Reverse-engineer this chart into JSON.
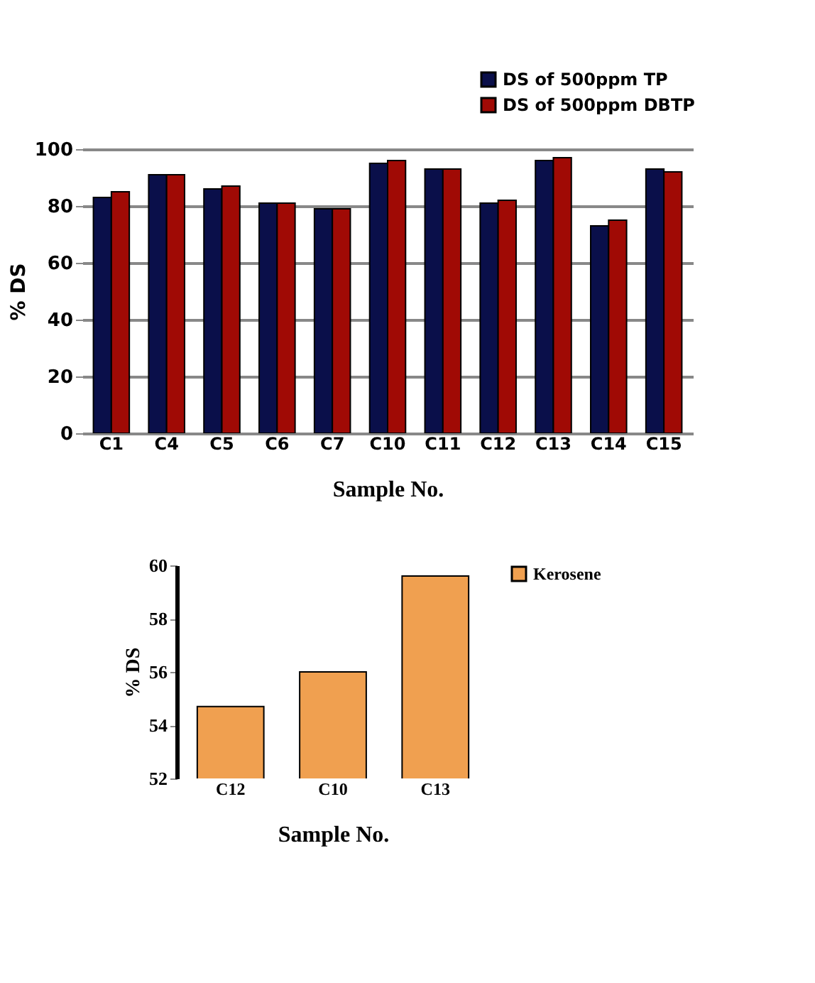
{
  "chart_data": [
    {
      "type": "bar",
      "xlabel": "Sample No.",
      "ylabel": "% DS",
      "categories": [
        "C1",
        "C4",
        "C5",
        "C6",
        "C7",
        "C10",
        "C11",
        "C12",
        "C13",
        "C14",
        "C15"
      ],
      "series": [
        {
          "name": "DS of 500ppm TP",
          "color": "#0a0f4a",
          "values": [
            83,
            91,
            86,
            81,
            79,
            95,
            93,
            81,
            96,
            73,
            93
          ]
        },
        {
          "name": "DS of 500ppm DBTP",
          "color": "#a00a05",
          "values": [
            85,
            91,
            87,
            81,
            79,
            96,
            93,
            82,
            97,
            75,
            92
          ]
        }
      ],
      "ylim": [
        0,
        100
      ],
      "yticks": [
        0,
        20,
        40,
        60,
        80,
        100
      ],
      "grid": "y",
      "legend": "top right"
    },
    {
      "type": "bar",
      "xlabel": "Sample No.",
      "ylabel": "% DS",
      "categories": [
        "C12",
        "C10",
        "C13"
      ],
      "series": [
        {
          "name": "Kerosene",
          "color": "#f0a050",
          "values": [
            54.7,
            56.0,
            59.6
          ]
        }
      ],
      "ylim": [
        52,
        60
      ],
      "yticks": [
        52,
        54,
        56,
        58,
        60
      ],
      "grid": false,
      "legend": "top right"
    }
  ]
}
